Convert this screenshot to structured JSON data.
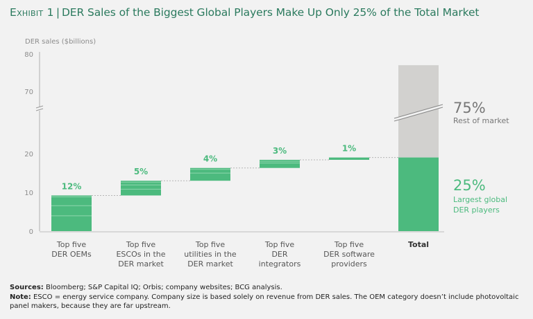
{
  "header": {
    "exhibit": "Exhibit 1",
    "separator": "|",
    "title": "DER Sales of the Biggest Global Players Make Up Only 25% of the Total Market"
  },
  "colors": {
    "green": "#4cba7e",
    "grey": "#d2d1cf",
    "title": "#2b7a5e",
    "axis": "#b0b0b0"
  },
  "chart_data": {
    "type": "bar",
    "subtype": "waterfall",
    "title": "DER Sales of the Biggest Global Players Make Up Only 25% of the Total Market",
    "ylabel": "DER sales ($billions)",
    "xlabel": "",
    "ylim": [
      0,
      80
    ],
    "axis_break": [
      20,
      65
    ],
    "yticks": [
      0,
      10,
      20,
      70,
      80
    ],
    "grid": false,
    "categories": [
      [
        "Top five",
        "DER OEMs"
      ],
      [
        "Top five",
        "ESCOs in the",
        "DER market"
      ],
      [
        "Top five",
        "utilities in the",
        "DER market"
      ],
      [
        "Top five",
        "DER",
        "integrators"
      ],
      [
        "Top five",
        "DER software",
        "providers"
      ],
      [
        "Total"
      ]
    ],
    "steps": [
      {
        "name": "Top five DER OEMs",
        "start": 0,
        "end": 9.2,
        "label": "12%"
      },
      {
        "name": "Top five ESCOs in the DER market",
        "start": 9.2,
        "end": 13.0,
        "label": "5%"
      },
      {
        "name": "Top five utilities in the DER market",
        "start": 13.0,
        "end": 16.3,
        "label": "4%"
      },
      {
        "name": "Top five DER integrators",
        "start": 16.3,
        "end": 18.4,
        "label": "3%"
      },
      {
        "name": "Top five DER software providers",
        "start": 18.4,
        "end": 19.0,
        "label": "1%"
      }
    ],
    "total": {
      "name": "Total",
      "segments": [
        {
          "name": "Largest global DER players",
          "value": 19.0,
          "share": "25%",
          "label_lines": [
            "Largest global",
            "DER players"
          ]
        },
        {
          "name": "Rest of market",
          "value": 58.0,
          "share": "75%",
          "label_lines": [
            "Rest of market"
          ]
        }
      ],
      "value": 77.0
    }
  },
  "footer": {
    "sources_label": "Sources:",
    "sources_text": " Bloomberg; S&P Capital IQ; Orbis; company websites; BCG analysis.",
    "note_label": "Note:",
    "note_text": " ESCO = energy service company. Company size is based solely on revenue from DER sales. The OEM category doesn’t include photovoltaic panel makers, because they are far upstream."
  }
}
